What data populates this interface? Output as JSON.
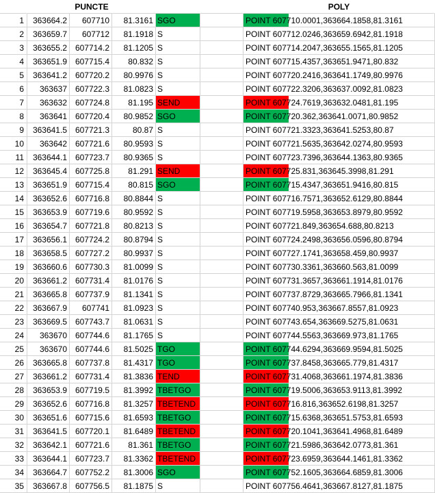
{
  "header": {
    "puncte": "PUNCTE",
    "poly": "POLY"
  },
  "colors": {
    "green": "#00b050",
    "red": "#ff0000",
    "grid": "#d4d4d4"
  },
  "rows": [
    {
      "index": "1",
      "a": "363664.2",
      "b": "607710",
      "c": "81.3161",
      "code": "SGO",
      "poly": "POINT 607710.0001,363664.1858,81.3161",
      "color": "green"
    },
    {
      "index": "2",
      "a": "363659.7",
      "b": "607712",
      "c": "81.1918",
      "code": "S",
      "poly": "POINT 607712.0246,363659.6942,81.1918",
      "color": ""
    },
    {
      "index": "3",
      "a": "363655.2",
      "b": "607714.2",
      "c": "81.1205",
      "code": "S",
      "poly": "POINT 607714.2047,363655.1565,81.1205",
      "color": ""
    },
    {
      "index": "4",
      "a": "363651.9",
      "b": "607715.4",
      "c": "80.832",
      "code": "S",
      "poly": "POINT 607715.4357,363651.9471,80.832",
      "color": ""
    },
    {
      "index": "5",
      "a": "363641.2",
      "b": "607720.2",
      "c": "80.9976",
      "code": "S",
      "poly": "POINT 607720.2416,363641.1749,80.9976",
      "color": ""
    },
    {
      "index": "6",
      "a": "363637",
      "b": "607722.3",
      "c": "81.0823",
      "code": "S",
      "poly": "POINT 607722.3206,363637.0092,81.0823",
      "color": ""
    },
    {
      "index": "7",
      "a": "363632",
      "b": "607724.8",
      "c": "81.195",
      "code": "SEND",
      "poly": "POINT 607724.7619,363632.0481,81.195",
      "color": "red"
    },
    {
      "index": "8",
      "a": "363641",
      "b": "607720.4",
      "c": "80.9852",
      "code": "SGO",
      "poly": "POINT 607720.362,363641.0071,80.9852",
      "color": "green"
    },
    {
      "index": "9",
      "a": "363641.5",
      "b": "607721.3",
      "c": "80.87",
      "code": "S",
      "poly": "POINT 607721.3323,363641.5253,80.87",
      "color": ""
    },
    {
      "index": "10",
      "a": "363642",
      "b": "607721.6",
      "c": "80.9593",
      "code": "S",
      "poly": "POINT 607721.5635,363642.0274,80.9593",
      "color": ""
    },
    {
      "index": "11",
      "a": "363644.1",
      "b": "607723.7",
      "c": "80.9365",
      "code": "S",
      "poly": "POINT 607723.7396,363644.1363,80.9365",
      "color": ""
    },
    {
      "index": "12",
      "a": "363645.4",
      "b": "607725.8",
      "c": "81.291",
      "code": "SEND",
      "poly": "POINT 607725.831,363645.3998,81.291",
      "color": "red"
    },
    {
      "index": "13",
      "a": "363651.9",
      "b": "607715.4",
      "c": "80.815",
      "code": "SGO",
      "poly": "POINT 607715.4347,363651.9416,80.815",
      "color": "green"
    },
    {
      "index": "14",
      "a": "363652.6",
      "b": "607716.8",
      "c": "80.8844",
      "code": "S",
      "poly": "POINT 607716.7571,363652.6129,80.8844",
      "color": ""
    },
    {
      "index": "15",
      "a": "363653.9",
      "b": "607719.6",
      "c": "80.9592",
      "code": "S",
      "poly": "POINT 607719.5958,363653.8979,80.9592",
      "color": ""
    },
    {
      "index": "16",
      "a": "363654.7",
      "b": "607721.8",
      "c": "80.8213",
      "code": "S",
      "poly": "POINT 607721.849,363654.688,80.8213",
      "color": ""
    },
    {
      "index": "17",
      "a": "363656.1",
      "b": "607724.2",
      "c": "80.8794",
      "code": "S",
      "poly": "POINT 607724.2498,363656.0596,80.8794",
      "color": ""
    },
    {
      "index": "18",
      "a": "363658.5",
      "b": "607727.2",
      "c": "80.9937",
      "code": "S",
      "poly": "POINT 607727.1741,363658.459,80.9937",
      "color": ""
    },
    {
      "index": "19",
      "a": "363660.6",
      "b": "607730.3",
      "c": "81.0099",
      "code": "S",
      "poly": "POINT 607730.3361,363660.563,81.0099",
      "color": ""
    },
    {
      "index": "20",
      "a": "363661.2",
      "b": "607731.4",
      "c": "81.0176",
      "code": "S",
      "poly": "POINT 607731.3657,363661.1914,81.0176",
      "color": ""
    },
    {
      "index": "21",
      "a": "363665.8",
      "b": "607737.9",
      "c": "81.1341",
      "code": "S",
      "poly": "POINT 607737.8729,363665.7966,81.1341",
      "color": ""
    },
    {
      "index": "22",
      "a": "363667.9",
      "b": "607741",
      "c": "81.0923",
      "code": "S",
      "poly": "POINT 607740.953,363667.8557,81.0923",
      "color": ""
    },
    {
      "index": "23",
      "a": "363669.5",
      "b": "607743.7",
      "c": "81.0631",
      "code": "S",
      "poly": "POINT 607743.654,363669.5275,81.0631",
      "color": ""
    },
    {
      "index": "24",
      "a": "363670",
      "b": "607744.6",
      "c": "81.1765",
      "code": "S",
      "poly": "POINT 607744.5563,363669.973,81.1765",
      "color": ""
    },
    {
      "index": "25",
      "a": "363670",
      "b": "607744.6",
      "c": "81.5025",
      "code": "TGO",
      "poly": "POINT 607744.6294,363669.9594,81.5025",
      "color": "green"
    },
    {
      "index": "26",
      "a": "363665.8",
      "b": "607737.8",
      "c": "81.4317",
      "code": "TGO",
      "poly": "POINT 607737.8458,363665.779,81.4317",
      "color": "green"
    },
    {
      "index": "27",
      "a": "363661.2",
      "b": "607731.4",
      "c": "81.3836",
      "code": "TEND",
      "poly": "POINT 607731.4068,363661.1974,81.3836",
      "color": "red"
    },
    {
      "index": "28",
      "a": "363653.9",
      "b": "607719.5",
      "c": "81.3992",
      "code": "TBETGO",
      "poly": "POINT 607719.5006,363653.9113,81.3992",
      "color": "green"
    },
    {
      "index": "29",
      "a": "363652.6",
      "b": "607716.8",
      "c": "81.3257",
      "code": "TBETEND",
      "poly": "POINT 607716.816,363652.6198,81.3257",
      "color": "red"
    },
    {
      "index": "30",
      "a": "363651.6",
      "b": "607715.6",
      "c": "81.6593",
      "code": "TBETGO",
      "poly": "POINT 607715.6368,363651.5753,81.6593",
      "color": "green"
    },
    {
      "index": "31",
      "a": "363641.5",
      "b": "607720.1",
      "c": "81.6489",
      "code": "TBETEND",
      "poly": "POINT 607720.1041,363641.4968,81.6489",
      "color": "red"
    },
    {
      "index": "32",
      "a": "363642.1",
      "b": "607721.6",
      "c": "81.361",
      "code": "TBETGO",
      "poly": "POINT 607721.5986,363642.0773,81.361",
      "color": "green"
    },
    {
      "index": "33",
      "a": "363644.1",
      "b": "607723.7",
      "c": "81.3362",
      "code": "TBETEND",
      "poly": "POINT 607723.6959,363644.1461,81.3362",
      "color": "red"
    },
    {
      "index": "34",
      "a": "363664.7",
      "b": "607752.2",
      "c": "81.3006",
      "code": "SGO",
      "poly": "POINT 607752.1605,363664.6859,81.3006",
      "color": "green"
    },
    {
      "index": "35",
      "a": "363667.8",
      "b": "607756.5",
      "c": "81.1875",
      "code": "S",
      "poly": "POINT 607756.4641,363667.8127,81.1875",
      "color": ""
    }
  ]
}
